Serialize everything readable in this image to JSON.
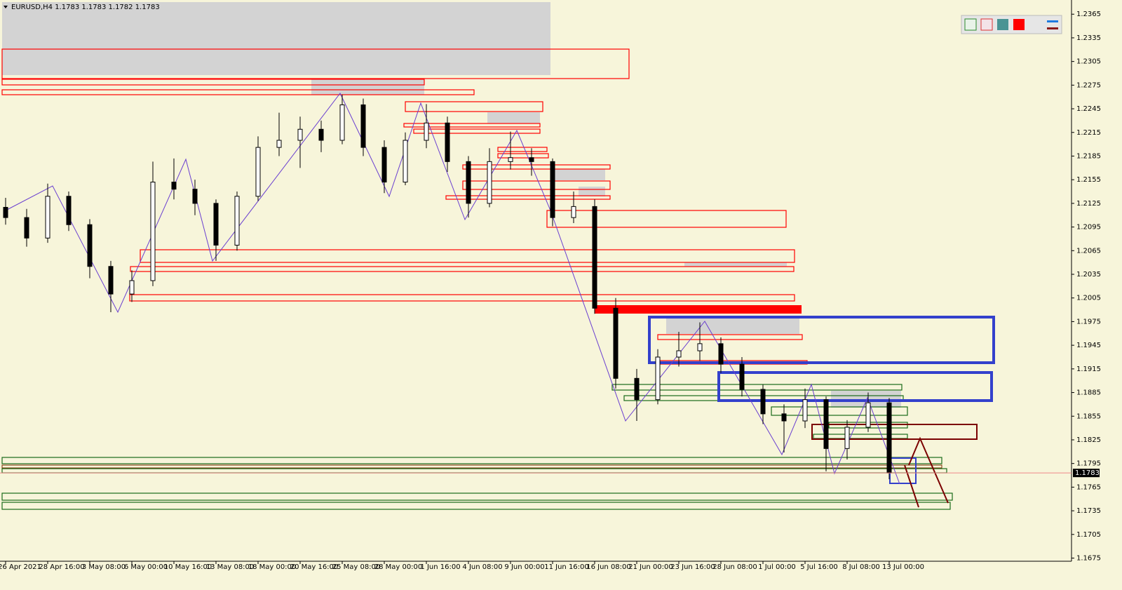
{
  "chart_data": {
    "type": "candlestick",
    "title": "EURUSD,H4  1.1783 1.1783 1.1782 1.1783",
    "categories": [
      "26 Apr 2021",
      null,
      "28 Apr 16:00",
      null,
      "3 May 08:00",
      null,
      "6 May 00:00",
      null,
      "10 May 16:00",
      null,
      "13 May 08:00",
      null,
      "18 May 00:00",
      null,
      "20 May 16:00",
      null,
      "25 May 08:00",
      null,
      "28 May 00:00",
      null,
      "1 Jun 16:00",
      null,
      "4 Jun 08:00",
      null,
      "9 Jun 00:00",
      null,
      "11 Jun 16:00",
      null,
      "16 Jun 08:00",
      null,
      "21 Jun 00:00",
      null,
      "23 Jun 16:00",
      null,
      "28 Jun 08:00",
      null,
      "1 Jul 00:00",
      null,
      "5 Jul 16:00",
      null,
      "8 Jul 08:00",
      null,
      "13 Jul 00:00"
    ],
    "open": [
      1.212,
      1.2107,
      1.2081,
      1.2134,
      1.2098,
      1.2045,
      1.201,
      1.2027,
      1.2152,
      1.2143,
      1.2125,
      1.2072,
      1.2134,
      1.2196,
      1.2205,
      1.2219,
      1.2205,
      1.225,
      1.2196,
      1.2152,
      1.2205,
      1.2227,
      1.2178,
      1.2125,
      1.2178,
      1.2183,
      1.2178,
      1.2107,
      1.2121,
      1.1992,
      1.1903,
      1.1876,
      1.193,
      1.1938,
      1.1947,
      1.1921,
      1.1889,
      1.1858,
      1.1849,
      1.1876,
      1.1814,
      1.1841,
      1.1872
    ],
    "high": [
      1.2132,
      1.2118,
      1.215,
      1.214,
      1.2105,
      1.2052,
      1.204,
      1.2178,
      1.2182,
      1.2155,
      1.213,
      1.214,
      1.221,
      1.224,
      1.2235,
      1.223,
      1.2263,
      1.2258,
      1.2205,
      1.2215,
      1.2251,
      1.2235,
      1.2185,
      1.2195,
      1.2216,
      1.2195,
      1.2182,
      1.214,
      1.213,
      1.2005,
      1.1915,
      1.194,
      1.1962,
      1.1974,
      1.1955,
      1.193,
      1.1895,
      1.187,
      1.189,
      1.188,
      1.185,
      1.1885,
      1.1878
    ],
    "low": [
      1.2098,
      1.207,
      1.2075,
      1.209,
      1.203,
      1.1987,
      1.2,
      1.202,
      1.213,
      1.211,
      1.2052,
      1.2065,
      1.2128,
      1.2185,
      1.217,
      1.219,
      1.22,
      1.2185,
      1.2138,
      1.2148,
      1.2195,
      1.2165,
      1.2107,
      1.212,
      1.2168,
      1.216,
      1.2096,
      1.21,
      1.1985,
      1.189,
      1.1849,
      1.187,
      1.1918,
      1.1925,
      1.191,
      1.188,
      1.1845,
      1.1809,
      1.184,
      1.1785,
      1.18,
      1.1835,
      1.1775
    ],
    "close": [
      1.2107,
      1.2081,
      1.2134,
      1.2098,
      1.2045,
      1.201,
      1.2027,
      1.2152,
      1.2143,
      1.2125,
      1.2072,
      1.2134,
      1.2196,
      1.2205,
      1.2219,
      1.2205,
      1.225,
      1.2196,
      1.2152,
      1.2205,
      1.2227,
      1.2178,
      1.2125,
      1.2178,
      1.2183,
      1.2178,
      1.2107,
      1.2121,
      1.1992,
      1.1903,
      1.1876,
      1.193,
      1.1938,
      1.1947,
      1.1921,
      1.1889,
      1.1858,
      1.1849,
      1.1876,
      1.1814,
      1.1841,
      1.1872,
      1.1783
    ],
    "last_price": 1.1783,
    "ylim": [
      1.1671,
      1.2383
    ],
    "yticks": [
      1.2365,
      1.2335,
      1.2305,
      1.2275,
      1.2245,
      1.2215,
      1.2185,
      1.2155,
      1.2125,
      1.2095,
      1.2065,
      1.2035,
      1.2005,
      1.1975,
      1.1945,
      1.1915,
      1.1885,
      1.1855,
      1.1825,
      1.1795,
      1.1765,
      1.1735,
      1.1705,
      1.1675
    ]
  }
}
